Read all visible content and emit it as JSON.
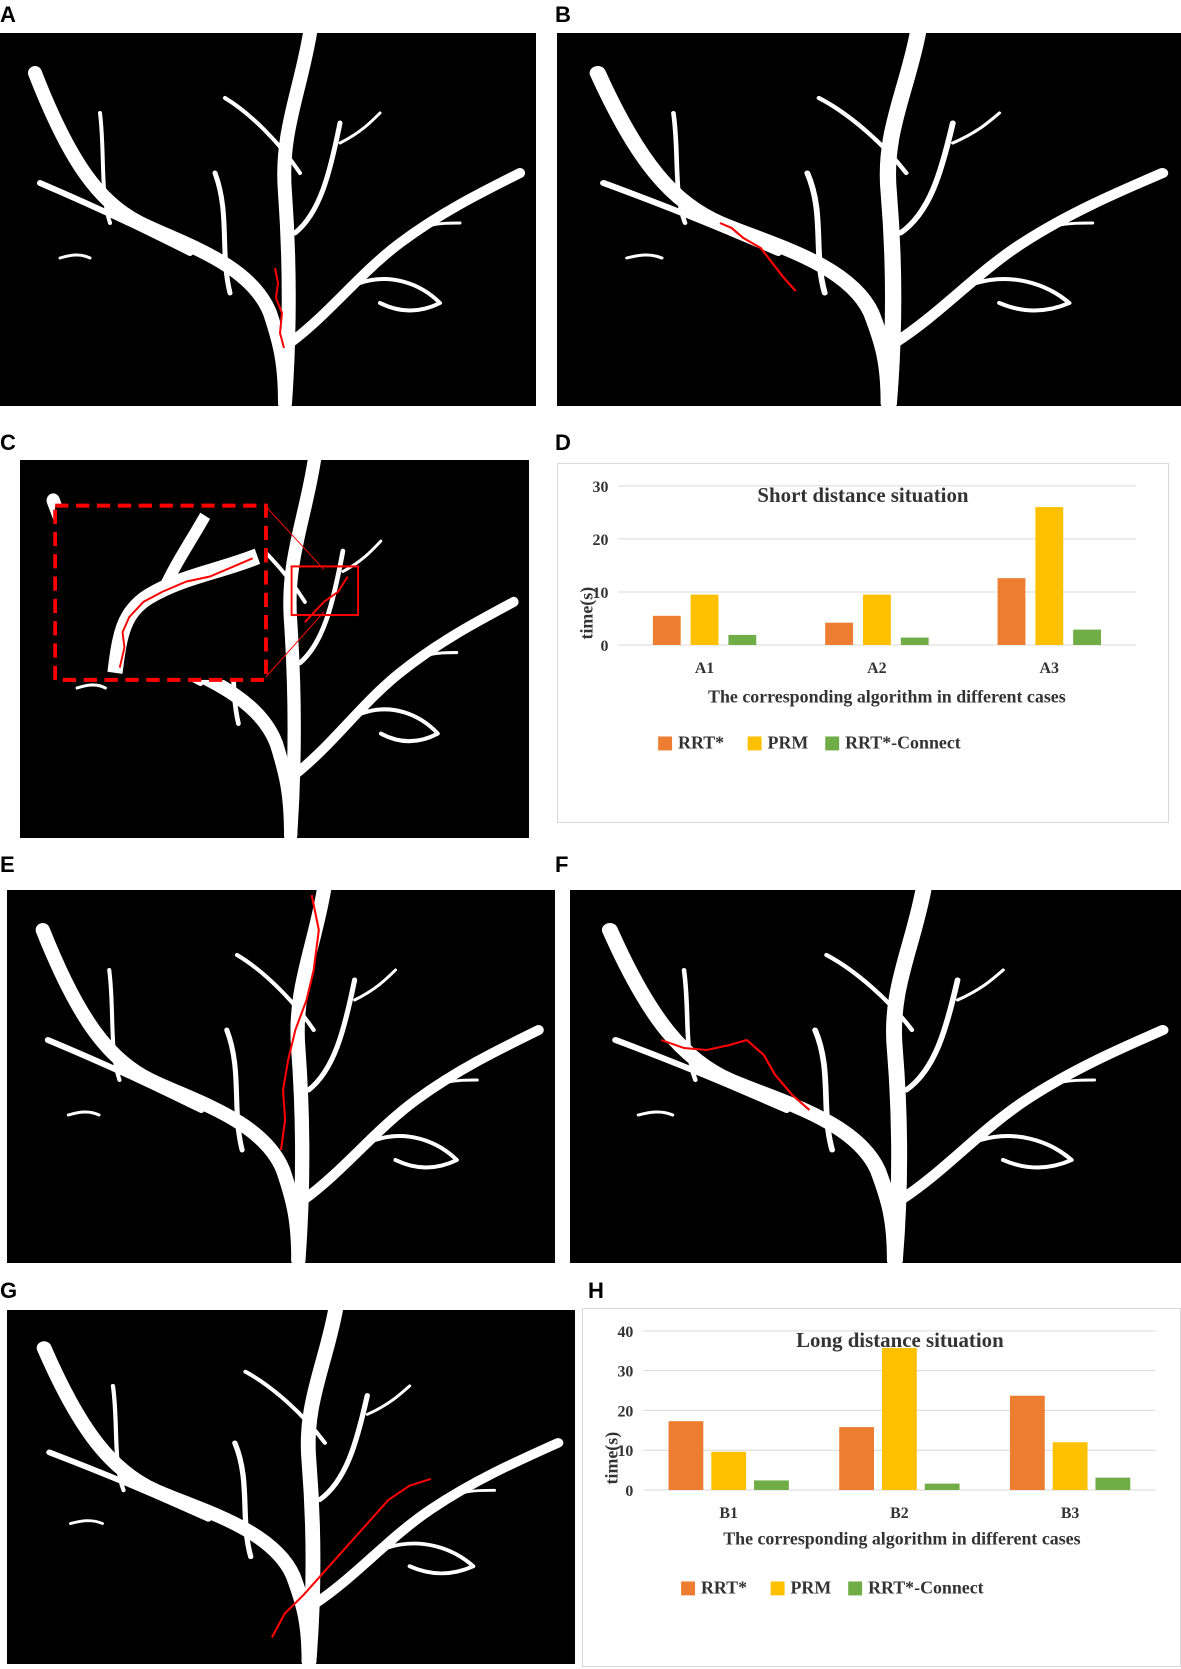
{
  "panels": {
    "A": "A",
    "B": "B",
    "C": "C",
    "D": "D",
    "E": "E",
    "F": "F",
    "G": "G",
    "H": "H"
  },
  "colors": {
    "vessel": "#ffffff",
    "background": "#000000",
    "path": "#ff0000",
    "rrt_star": "#ed7d31",
    "prm": "#ffc000",
    "rrt_star_connect": "#70ad47"
  },
  "chart_data": [
    {
      "type": "bar",
      "title": "Short distance situation",
      "categories": [
        "A1",
        "A2",
        "A3"
      ],
      "series": [
        {
          "name": "RRT*",
          "values": [
            5.5,
            4.2,
            12.6
          ]
        },
        {
          "name": "PRM",
          "values": [
            9.5,
            9.5,
            26
          ]
        },
        {
          "name": "RRT*-Connect",
          "values": [
            1.9,
            1.4,
            2.9
          ]
        }
      ],
      "xlabel": "The corresponding algorithm in different cases",
      "ylabel": "time(s)",
      "ylim": [
        0,
        30
      ],
      "yticks": [
        0,
        10,
        20,
        30
      ],
      "grid": true,
      "legend": "bottom"
    },
    {
      "type": "bar",
      "title": "Long distance situation",
      "categories": [
        "B1",
        "B2",
        "B3"
      ],
      "series": [
        {
          "name": "RRT*",
          "values": [
            17.3,
            15.8,
            23.7
          ]
        },
        {
          "name": "PRM",
          "values": [
            9.6,
            35.7,
            12
          ]
        },
        {
          "name": "RRT*-Connect",
          "values": [
            2.4,
            1.6,
            3.1
          ]
        }
      ],
      "xlabel": "The corresponding algorithm in different cases",
      "ylabel": "time(s)",
      "ylim": [
        0,
        40
      ],
      "yticks": [
        0,
        10,
        20,
        30,
        40
      ],
      "grid": true,
      "legend": "bottom"
    }
  ]
}
